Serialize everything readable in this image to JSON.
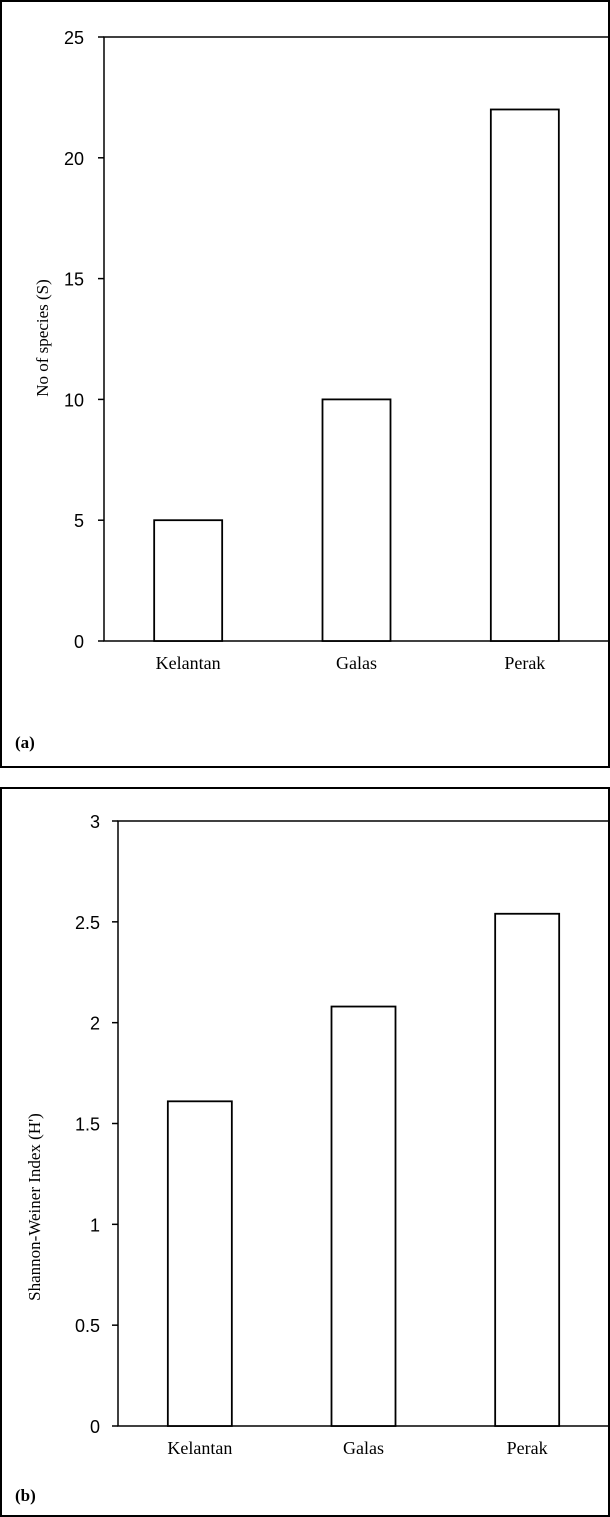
{
  "chart_data": [
    {
      "type": "bar",
      "panel_label": "(a)",
      "categories": [
        "Kelantan",
        "Galas",
        "Perak"
      ],
      "values": [
        5,
        10,
        22
      ],
      "ylabel": "No of species (S)",
      "ylim": [
        0,
        25
      ],
      "yticks": [
        0,
        5,
        10,
        15,
        20,
        25
      ],
      "bar_fill": "#ffffff",
      "bar_stroke": "#000000"
    },
    {
      "type": "bar",
      "panel_label": "(b)",
      "categories": [
        "Kelantan",
        "Galas",
        "Perak"
      ],
      "values": [
        1.61,
        2.08,
        2.54
      ],
      "ylabel": "Shannon-Weiner Index (H')",
      "ylim": [
        0,
        3
      ],
      "yticks": [
        0,
        0.5,
        1,
        1.5,
        2,
        2.5,
        3
      ],
      "bar_fill": "#ffffff",
      "bar_stroke": "#000000"
    }
  ]
}
